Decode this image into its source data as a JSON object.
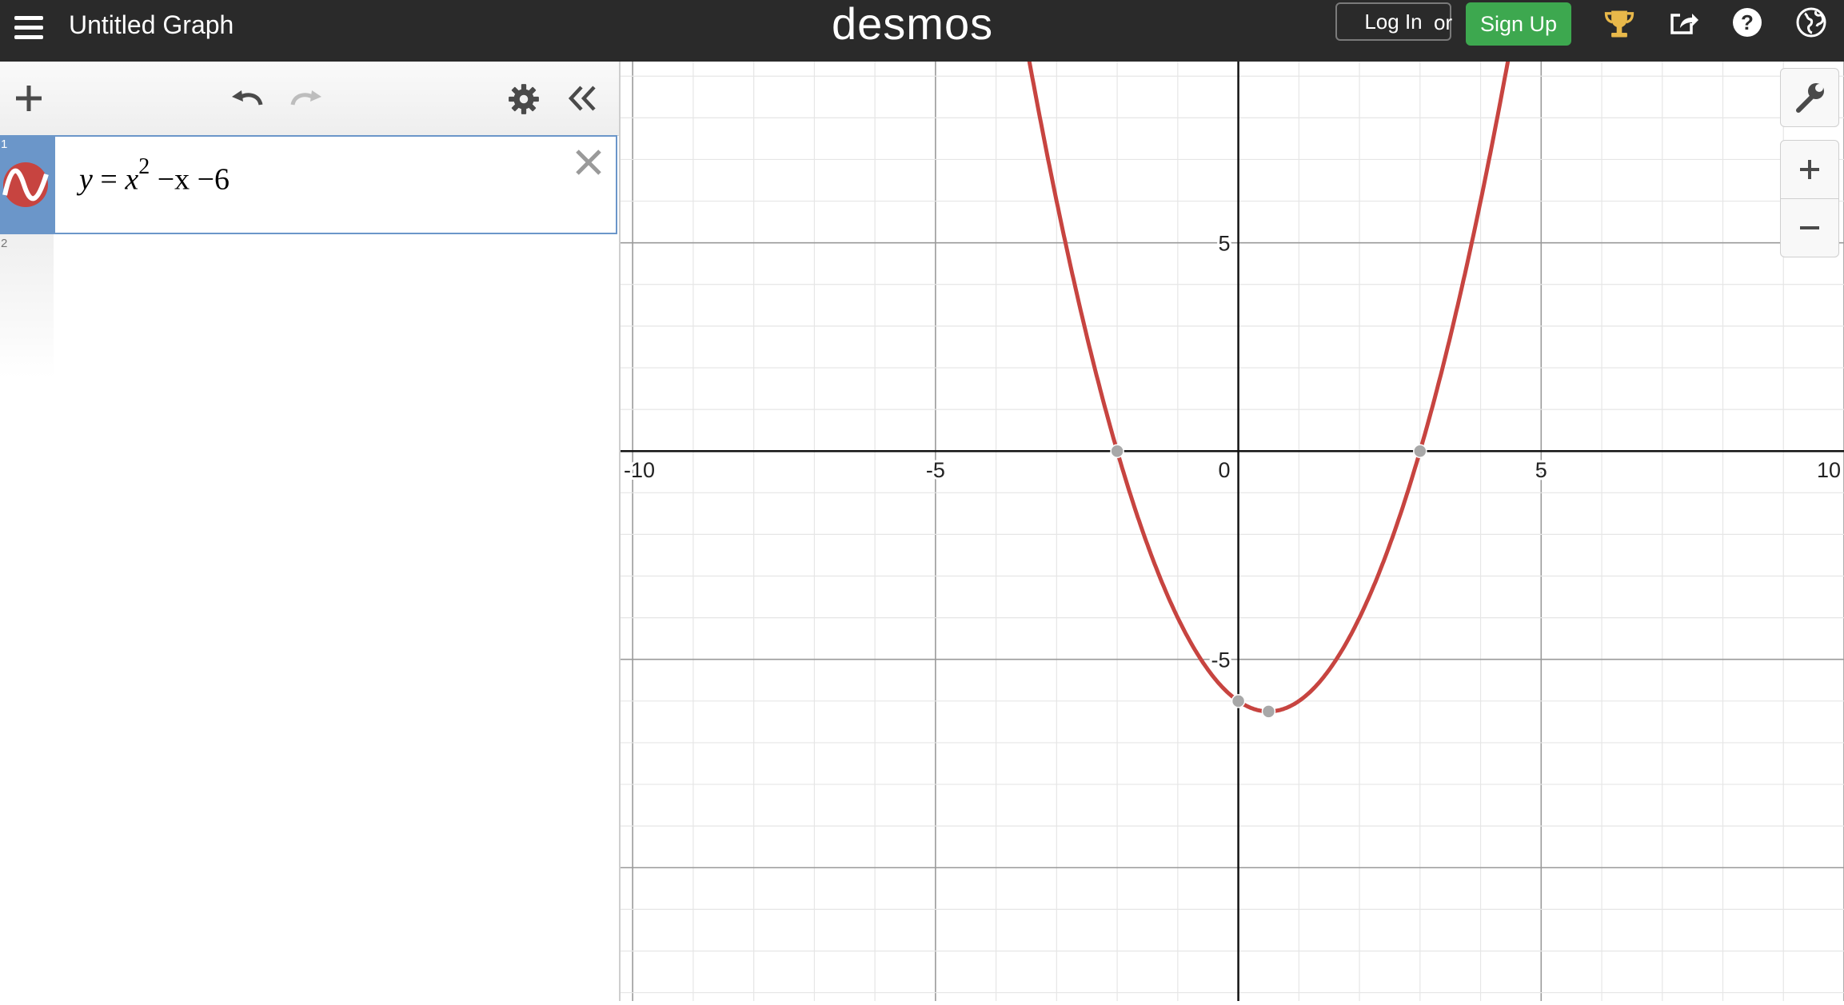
{
  "header": {
    "title": "Untitled Graph",
    "logo": "desmos",
    "login_label": "Log In",
    "or_label": "or",
    "signup_label": "Sign Up",
    "icons": [
      "menu-icon",
      "trophy-icon",
      "share-icon",
      "help-icon",
      "globe-icon"
    ]
  },
  "expressions": {
    "items": [
      {
        "number": "1",
        "lhs": "y",
        "eq": "=",
        "base": "x",
        "exp": "2",
        "rest": "−x −6",
        "color": "#c74440"
      },
      {
        "number": "2"
      }
    ],
    "toolbar_icons": [
      "add-icon",
      "undo-icon",
      "redo-icon",
      "settings-icon",
      "collapse-icon"
    ]
  },
  "graph_controls": [
    "wrench-icon",
    "zoom-in-icon",
    "zoom-out-icon"
  ],
  "chart_data": {
    "type": "line",
    "function": "y = x^2 - x - 6",
    "xlim": [
      -10.2,
      10
    ],
    "ylim": [
      -13.2,
      9.35
    ],
    "x_tick_labels": [
      "-10",
      "-5",
      "0",
      "5",
      "10"
    ],
    "y_tick_labels": [
      "5",
      "-5"
    ],
    "grid": true,
    "series": [
      {
        "color": "#c74440",
        "x": [
          -3.5,
          -3,
          -2.5,
          -2,
          -1.5,
          -1,
          -0.5,
          0,
          0.5,
          1,
          1.5,
          2,
          2.5,
          3,
          3.5,
          4,
          4.5
        ],
        "y": [
          9.75,
          6,
          2.75,
          0,
          -2.25,
          -4,
          -5.25,
          -6,
          -6.25,
          -6,
          -5.25,
          -4,
          -2.25,
          0,
          2.75,
          6,
          9.75
        ]
      }
    ],
    "points": [
      {
        "x": -2,
        "y": 0
      },
      {
        "x": 3,
        "y": 0
      },
      {
        "x": 0,
        "y": -6
      },
      {
        "x": 0.5,
        "y": -6.25
      }
    ]
  }
}
